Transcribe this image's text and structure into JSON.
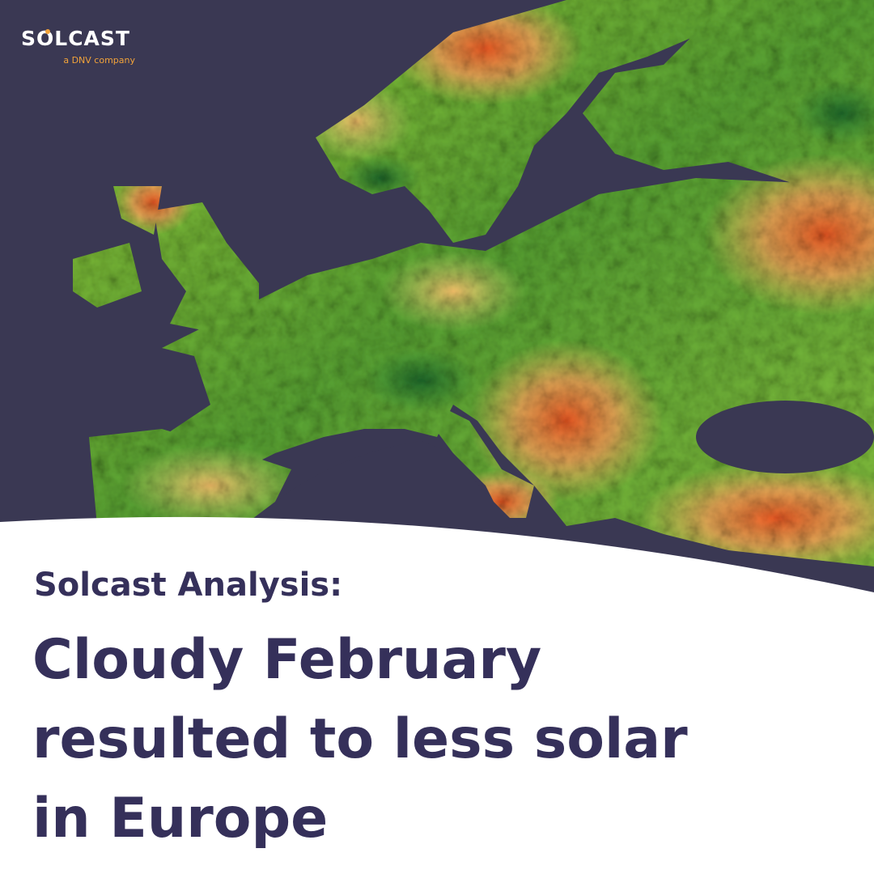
{
  "logo": {
    "brand": "SOLCAST",
    "tagline": "a DNV company"
  },
  "headline": {
    "kicker": "Solcast Analysis:",
    "title_lines": [
      "Cloudy February",
      "resulted to less solar",
      "in Europe"
    ]
  }
}
